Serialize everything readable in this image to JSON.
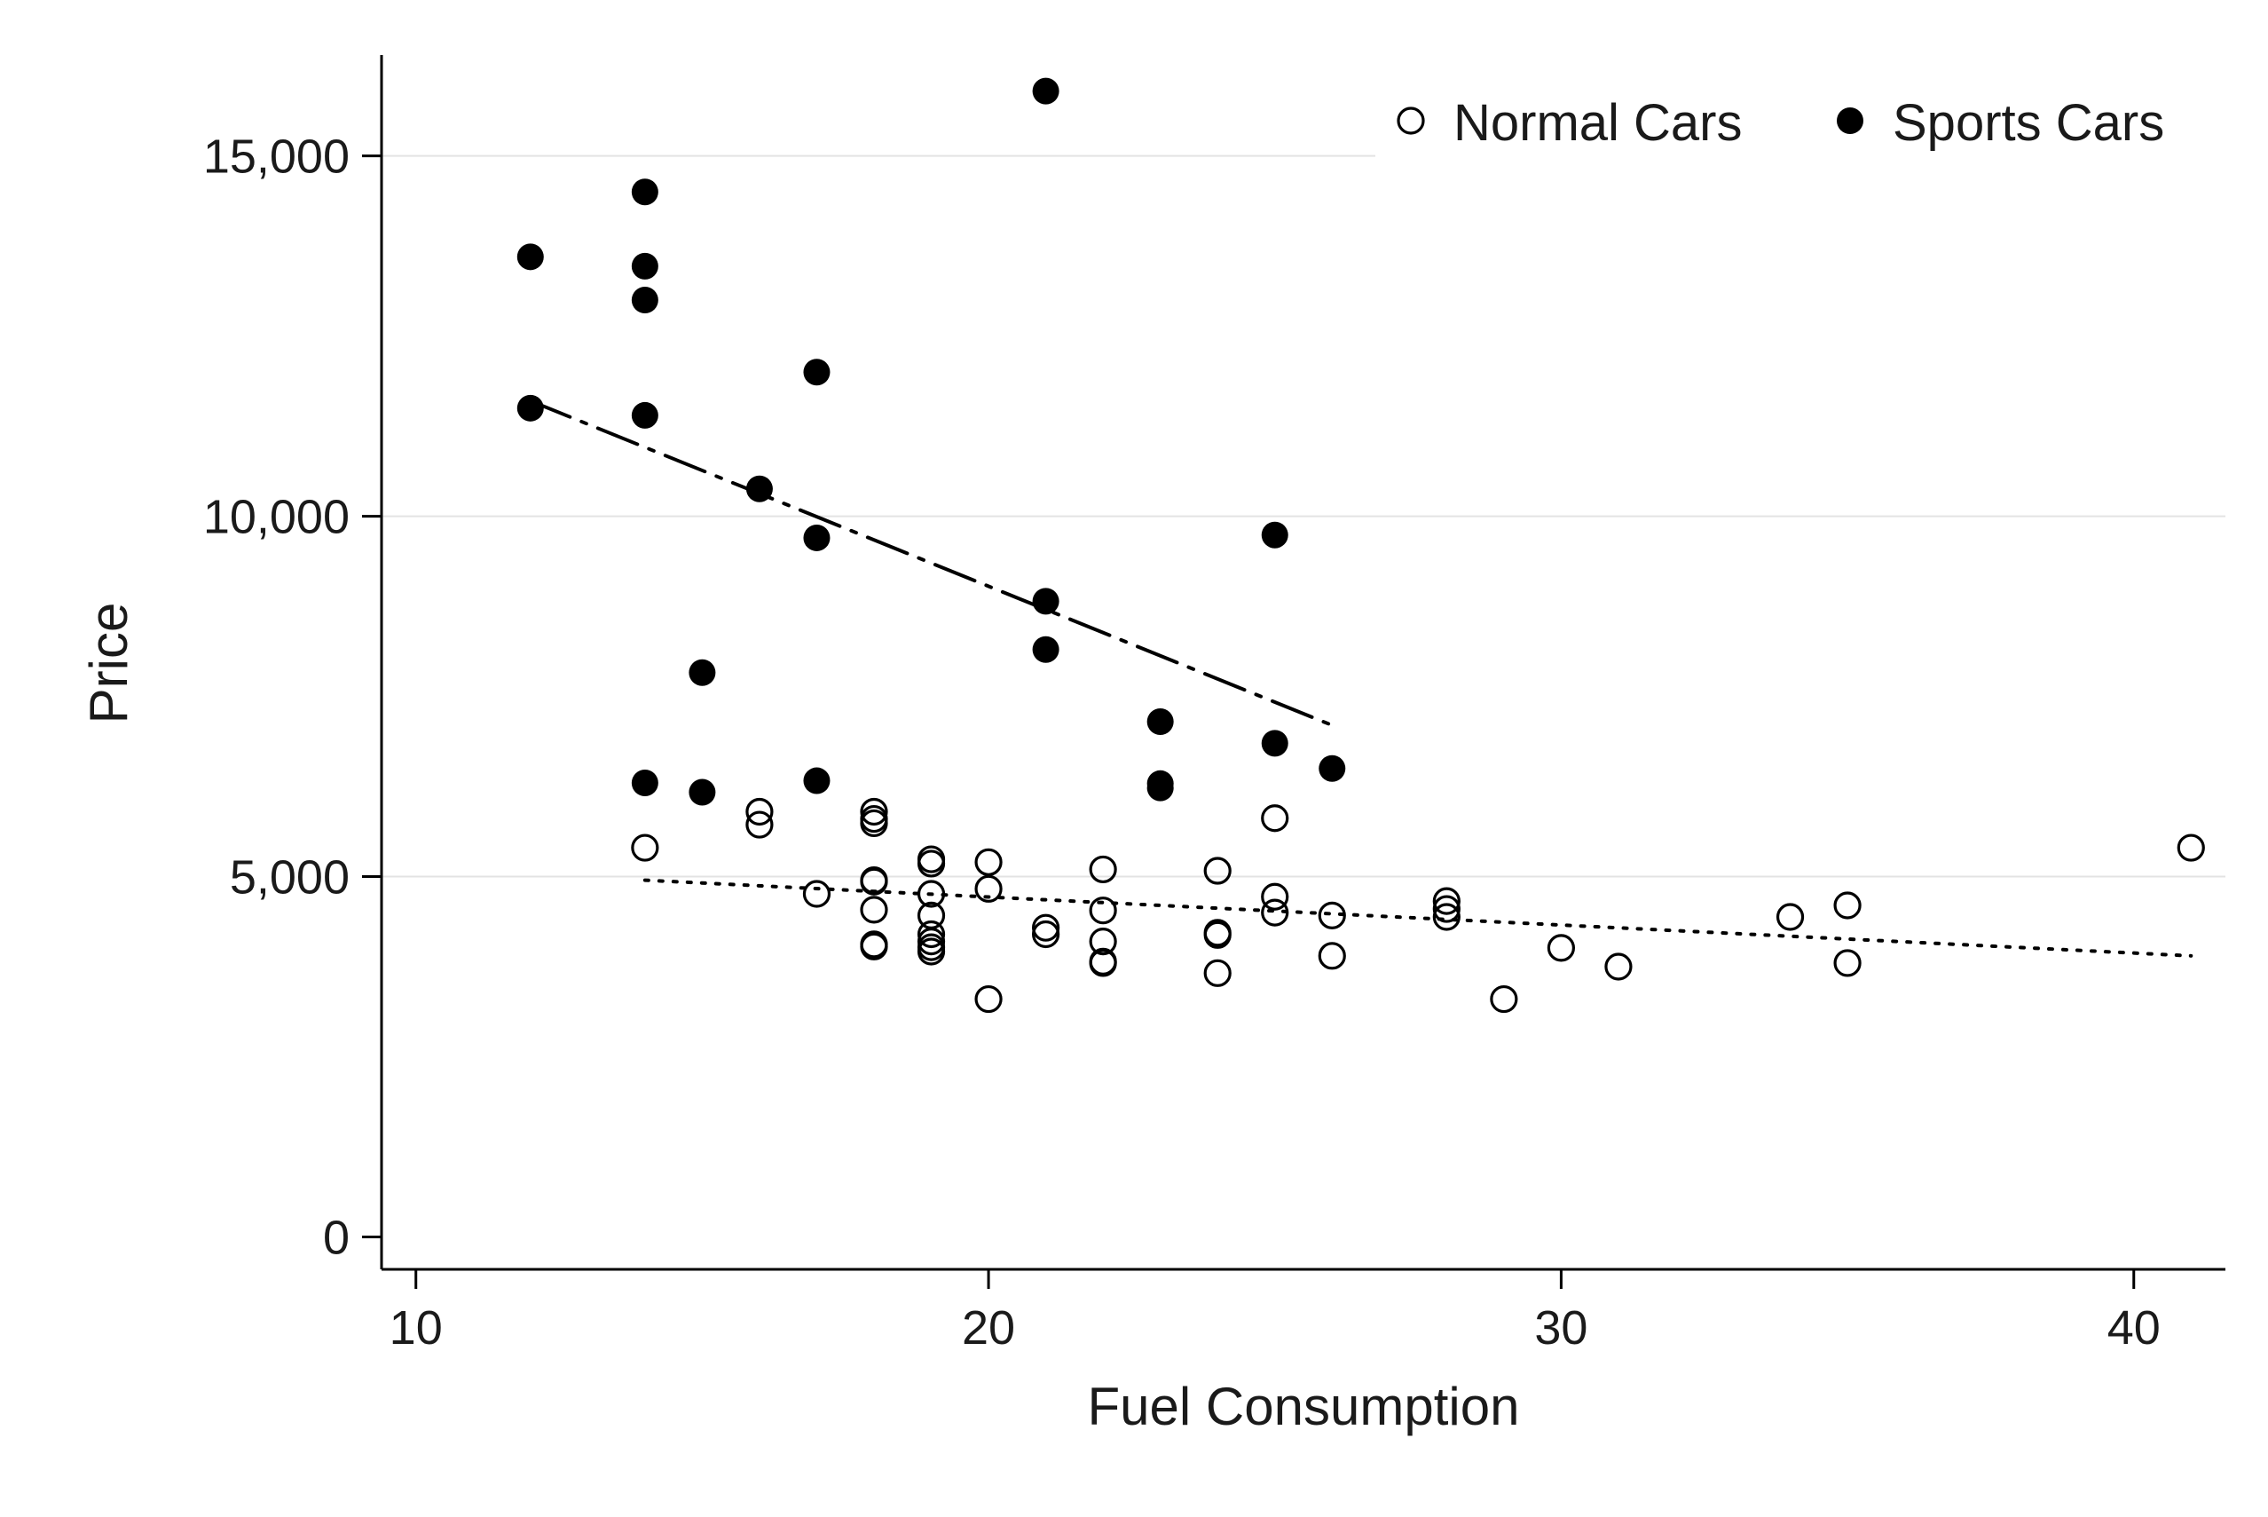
{
  "chart_data": {
    "type": "scatter",
    "xlabel": "Fuel Consumption",
    "ylabel": "Price",
    "xlim": [
      9.4,
      41.6
    ],
    "ylim": [
      -450,
      16400
    ],
    "x_ticks": [
      10,
      20,
      30,
      40
    ],
    "x_tick_labels": [
      "10",
      "20",
      "30",
      "40"
    ],
    "y_ticks": [
      0,
      5000,
      10000,
      15000
    ],
    "y_tick_labels": [
      "0",
      "5,000",
      "10,000",
      "15,000"
    ],
    "grid": "horizontal",
    "legend_position": "top-right",
    "series": [
      {
        "name": "Normal Cars",
        "marker": "hollow-circle",
        "color": "#000000",
        "fit_style": "dotted",
        "fit_line": [
          [
            14,
            4950
          ],
          [
            41,
            3900
          ]
        ],
        "points": [
          [
            14,
            5400
          ],
          [
            16,
            5900
          ],
          [
            16,
            5720
          ],
          [
            17,
            4760
          ],
          [
            18,
            5900
          ],
          [
            18,
            5800
          ],
          [
            18,
            5740
          ],
          [
            18,
            4950
          ],
          [
            18,
            4930
          ],
          [
            18,
            4540
          ],
          [
            18,
            4060
          ],
          [
            18,
            4030
          ],
          [
            19,
            5240
          ],
          [
            19,
            5180
          ],
          [
            19,
            4760
          ],
          [
            19,
            4460
          ],
          [
            19,
            4200
          ],
          [
            19,
            4100
          ],
          [
            19,
            4020
          ],
          [
            19,
            3960
          ],
          [
            20,
            5200
          ],
          [
            20,
            4830
          ],
          [
            20,
            3300
          ],
          [
            21,
            4290
          ],
          [
            21,
            4200
          ],
          [
            22,
            5100
          ],
          [
            22,
            4530
          ],
          [
            22,
            4100
          ],
          [
            22,
            3820
          ],
          [
            22,
            3800
          ],
          [
            24,
            5080
          ],
          [
            24,
            4220
          ],
          [
            24,
            4190
          ],
          [
            24,
            3660
          ],
          [
            25,
            5810
          ],
          [
            25,
            4720
          ],
          [
            25,
            4500
          ],
          [
            26,
            4460
          ],
          [
            26,
            3900
          ],
          [
            28,
            4660
          ],
          [
            28,
            4550
          ],
          [
            28,
            4440
          ],
          [
            29,
            3300
          ],
          [
            30,
            4010
          ],
          [
            31,
            3750
          ],
          [
            34,
            4440
          ],
          [
            35,
            4600
          ],
          [
            35,
            3800
          ],
          [
            41,
            5400
          ]
        ]
      },
      {
        "name": "Sports Cars",
        "marker": "filled-circle",
        "color": "#000000",
        "fit_style": "dash-dot",
        "fit_line": [
          [
            12,
            11600
          ],
          [
            26,
            7100
          ]
        ],
        "points": [
          [
            12,
            13600
          ],
          [
            12,
            11500
          ],
          [
            14,
            14500
          ],
          [
            14,
            13470
          ],
          [
            14,
            13000
          ],
          [
            14,
            11400
          ],
          [
            14,
            6300
          ],
          [
            15,
            7830
          ],
          [
            15,
            6170
          ],
          [
            16,
            10380
          ],
          [
            17,
            12000
          ],
          [
            17,
            9700
          ],
          [
            17,
            6330
          ],
          [
            21,
            15900
          ],
          [
            21,
            8820
          ],
          [
            21,
            8150
          ],
          [
            23,
            7150
          ],
          [
            23,
            6290
          ],
          [
            23,
            6230
          ],
          [
            25,
            9740
          ],
          [
            25,
            6850
          ],
          [
            26,
            6500
          ]
        ]
      }
    ]
  }
}
